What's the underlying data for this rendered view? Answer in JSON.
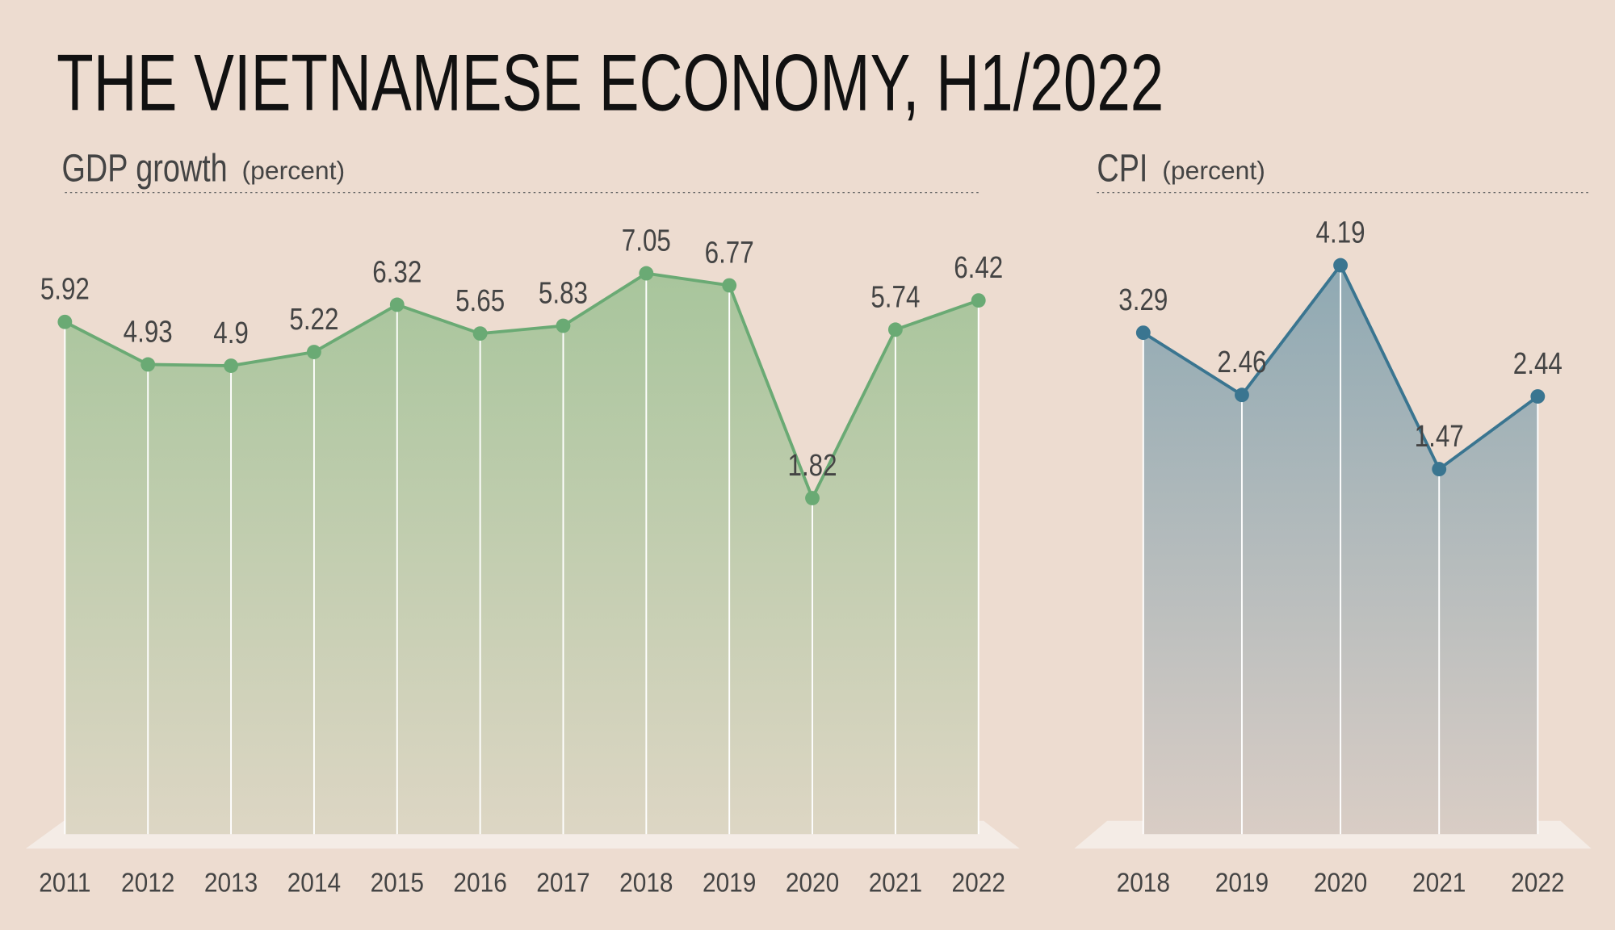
{
  "title": "THE VIETNAMESE ECONOMY, H1/2022",
  "chart_data": [
    {
      "type": "area",
      "title": "GDP growth",
      "unit": "(percent)",
      "categories": [
        "2011",
        "2012",
        "2013",
        "2014",
        "2015",
        "2016",
        "2017",
        "2018",
        "2019",
        "2020",
        "2021",
        "2022"
      ],
      "values": [
        5.92,
        4.93,
        4.9,
        5.22,
        6.32,
        5.65,
        5.83,
        7.05,
        6.77,
        1.82,
        5.74,
        6.42
      ],
      "color": "#6aaa74",
      "fill_top": "#a8c59c",
      "fill_bottom": "#ddd6c4",
      "ylim": [
        -6,
        9
      ]
    },
    {
      "type": "area",
      "title": "CPI",
      "unit": "(percent)",
      "categories": [
        "2018",
        "2019",
        "2020",
        "2021",
        "2022"
      ],
      "values": [
        3.29,
        2.46,
        4.19,
        1.47,
        2.44
      ],
      "color": "#3a7590",
      "fill_top": "#8fa9b3",
      "fill_bottom": "#d9cdc5",
      "ylim": [
        -3.4,
        5.2
      ]
    }
  ]
}
